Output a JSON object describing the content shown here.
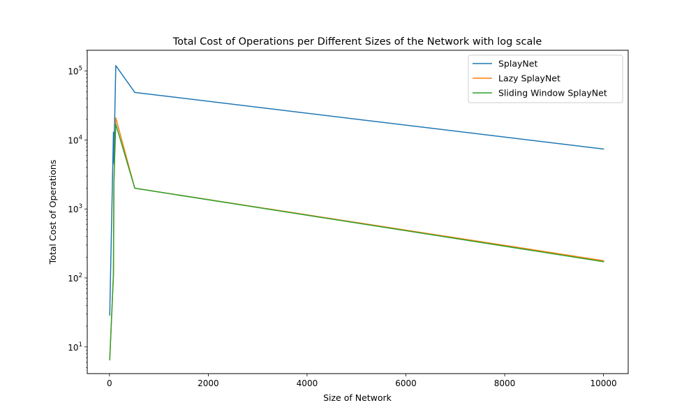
{
  "chart_data": {
    "type": "line",
    "title": "Total Cost of Operations per Different Sizes of the Network with log scale",
    "xlabel": "Size of Network",
    "ylabel": "Total Cost of Operations",
    "xlim": [
      -450,
      10500
    ],
    "ylim": [
      4.1,
      200000
    ],
    "yscale": "log",
    "grid": false,
    "legend_position": "top-right",
    "xticks": [
      {
        "value": 0,
        "label": "0"
      },
      {
        "value": 2000,
        "label": "2000"
      },
      {
        "value": 4000,
        "label": "4000"
      },
      {
        "value": 6000,
        "label": "6000"
      },
      {
        "value": 8000,
        "label": "8000"
      },
      {
        "value": 10000,
        "label": "10000"
      }
    ],
    "yticks": [
      {
        "value": 10,
        "base": "10",
        "exp": "1"
      },
      {
        "value": 100,
        "base": "10",
        "exp": "2"
      },
      {
        "value": 1000,
        "base": "10",
        "exp": "3"
      },
      {
        "value": 10000,
        "base": "10",
        "exp": "4"
      },
      {
        "value": 100000,
        "base": "10",
        "exp": "5"
      }
    ],
    "x": [
      5,
      80,
      90,
      100,
      128,
      512,
      10000
    ],
    "series": [
      {
        "name": "SplayNet",
        "color": "#1f77b4",
        "values": [
          29,
          13000,
          4500,
          13500,
          120000,
          49000,
          7400
        ]
      },
      {
        "name": "Lazy SplayNet",
        "color": "#ff7f0e",
        "values": [
          6.5,
          110,
          2500,
          4500,
          21000,
          2000,
          178
        ]
      },
      {
        "name": "Sliding Window SplayNet",
        "color": "#2ca02c",
        "values": [
          6.5,
          110,
          2400,
          4300,
          17000,
          2000,
          172
        ]
      }
    ]
  }
}
